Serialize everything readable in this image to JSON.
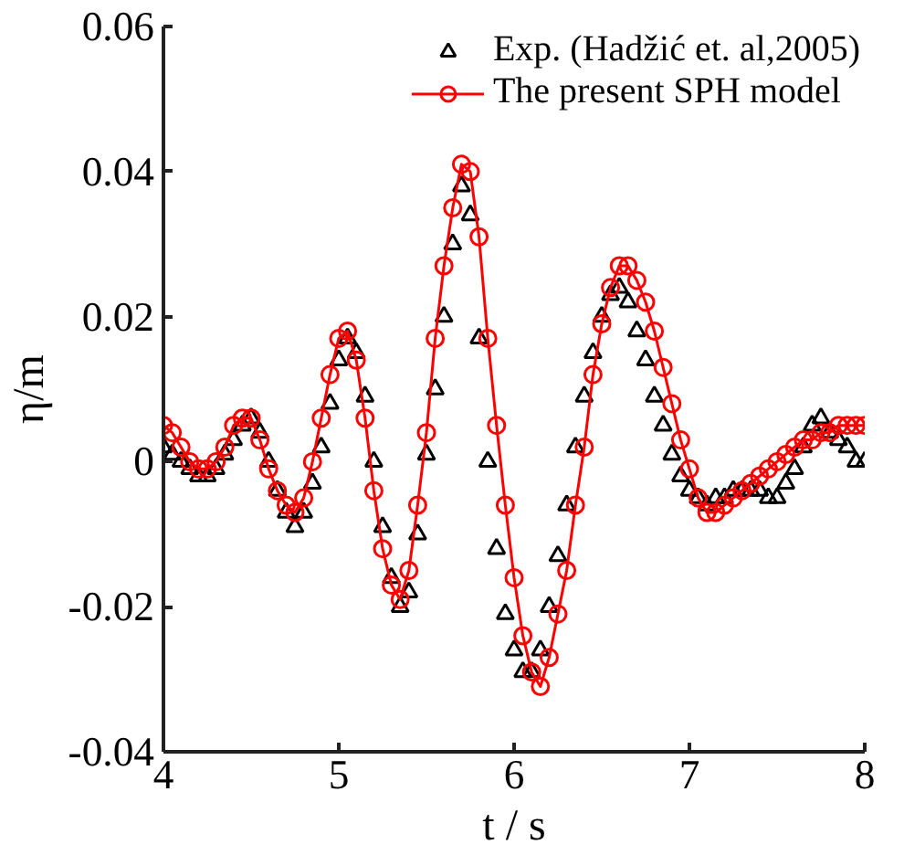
{
  "chart_data": {
    "type": "line",
    "xlabel": "t / s",
    "ylabel": "η/m",
    "x": [
      4.0,
      4.05,
      4.1,
      4.15,
      4.2,
      4.25,
      4.3,
      4.35,
      4.4,
      4.45,
      4.5,
      4.55,
      4.6,
      4.65,
      4.7,
      4.75,
      4.8,
      4.85,
      4.9,
      4.95,
      5.0,
      5.05,
      5.1,
      5.15,
      5.2,
      5.25,
      5.3,
      5.35,
      5.4,
      5.45,
      5.5,
      5.55,
      5.6,
      5.65,
      5.7,
      5.75,
      5.8,
      5.85,
      5.9,
      5.95,
      6.0,
      6.05,
      6.1,
      6.15,
      6.2,
      6.25,
      6.3,
      6.35,
      6.4,
      6.45,
      6.5,
      6.55,
      6.6,
      6.65,
      6.7,
      6.75,
      6.8,
      6.85,
      6.9,
      6.95,
      7.0,
      7.05,
      7.1,
      7.15,
      7.2,
      7.25,
      7.3,
      7.35,
      7.4,
      7.45,
      7.5,
      7.55,
      7.6,
      7.65,
      7.7,
      7.75,
      7.8,
      7.85,
      7.9,
      7.95,
      8.0
    ],
    "series": [
      {
        "name": "Exp. (Hadžić et. al,2005)",
        "type": "scatter",
        "marker": "triangle",
        "color": "#000000",
        "values": [
          0.002,
          0.001,
          0.0,
          -0.001,
          -0.002,
          -0.002,
          -0.001,
          0.001,
          0.003,
          0.005,
          0.006,
          0.004,
          0.0,
          -0.004,
          -0.007,
          -0.009,
          -0.007,
          -0.003,
          0.002,
          0.008,
          0.014,
          0.017,
          0.015,
          0.009,
          0.0,
          -0.009,
          -0.016,
          -0.02,
          -0.018,
          -0.01,
          0.001,
          0.01,
          0.02,
          0.03,
          0.038,
          0.034,
          0.017,
          0.0,
          -0.012,
          -0.021,
          -0.026,
          -0.029,
          -0.029,
          -0.026,
          -0.02,
          -0.013,
          -0.006,
          0.002,
          0.009,
          0.015,
          0.02,
          0.023,
          0.024,
          0.022,
          0.018,
          0.014,
          0.009,
          0.005,
          0.001,
          -0.002,
          -0.004,
          -0.005,
          -0.006,
          -0.005,
          -0.005,
          -0.004,
          -0.004,
          -0.004,
          -0.004,
          -0.005,
          -0.005,
          -0.003,
          -0.001,
          0.002,
          0.005,
          0.006,
          0.004,
          0.003,
          0.002,
          0.0,
          0.0
        ]
      },
      {
        "name": "The present SPH model",
        "marker": "circle",
        "color": "#ff0000",
        "values": [
          0.005,
          0.004,
          0.002,
          0.0,
          -0.001,
          -0.001,
          0.0,
          0.002,
          0.005,
          0.006,
          0.006,
          0.003,
          -0.001,
          -0.004,
          -0.006,
          -0.007,
          -0.005,
          0.0,
          0.006,
          0.012,
          0.017,
          0.018,
          0.014,
          0.006,
          -0.004,
          -0.012,
          -0.017,
          -0.019,
          -0.015,
          -0.006,
          0.004,
          0.017,
          0.027,
          0.035,
          0.041,
          0.04,
          0.031,
          0.017,
          0.005,
          -0.006,
          -0.016,
          -0.024,
          -0.029,
          -0.031,
          -0.027,
          -0.021,
          -0.015,
          -0.006,
          0.002,
          0.012,
          0.019,
          0.024,
          0.027,
          0.027,
          0.025,
          0.022,
          0.018,
          0.013,
          0.008,
          0.003,
          -0.001,
          -0.005,
          -0.007,
          -0.007,
          -0.006,
          -0.005,
          -0.004,
          -0.003,
          -0.002,
          -0.001,
          0.0,
          0.001,
          0.002,
          0.003,
          0.003,
          0.004,
          0.004,
          0.005,
          0.005,
          0.005,
          0.005
        ]
      }
    ],
    "xlim": [
      4,
      8
    ],
    "xticks": [
      4,
      5,
      6,
      7,
      8
    ],
    "ylim": [
      -0.04,
      0.06
    ],
    "yticks": [
      -0.04,
      -0.02,
      0,
      0.02,
      0.04,
      0.06
    ],
    "grid": false,
    "legend": "top right",
    "line_style": "solid"
  }
}
